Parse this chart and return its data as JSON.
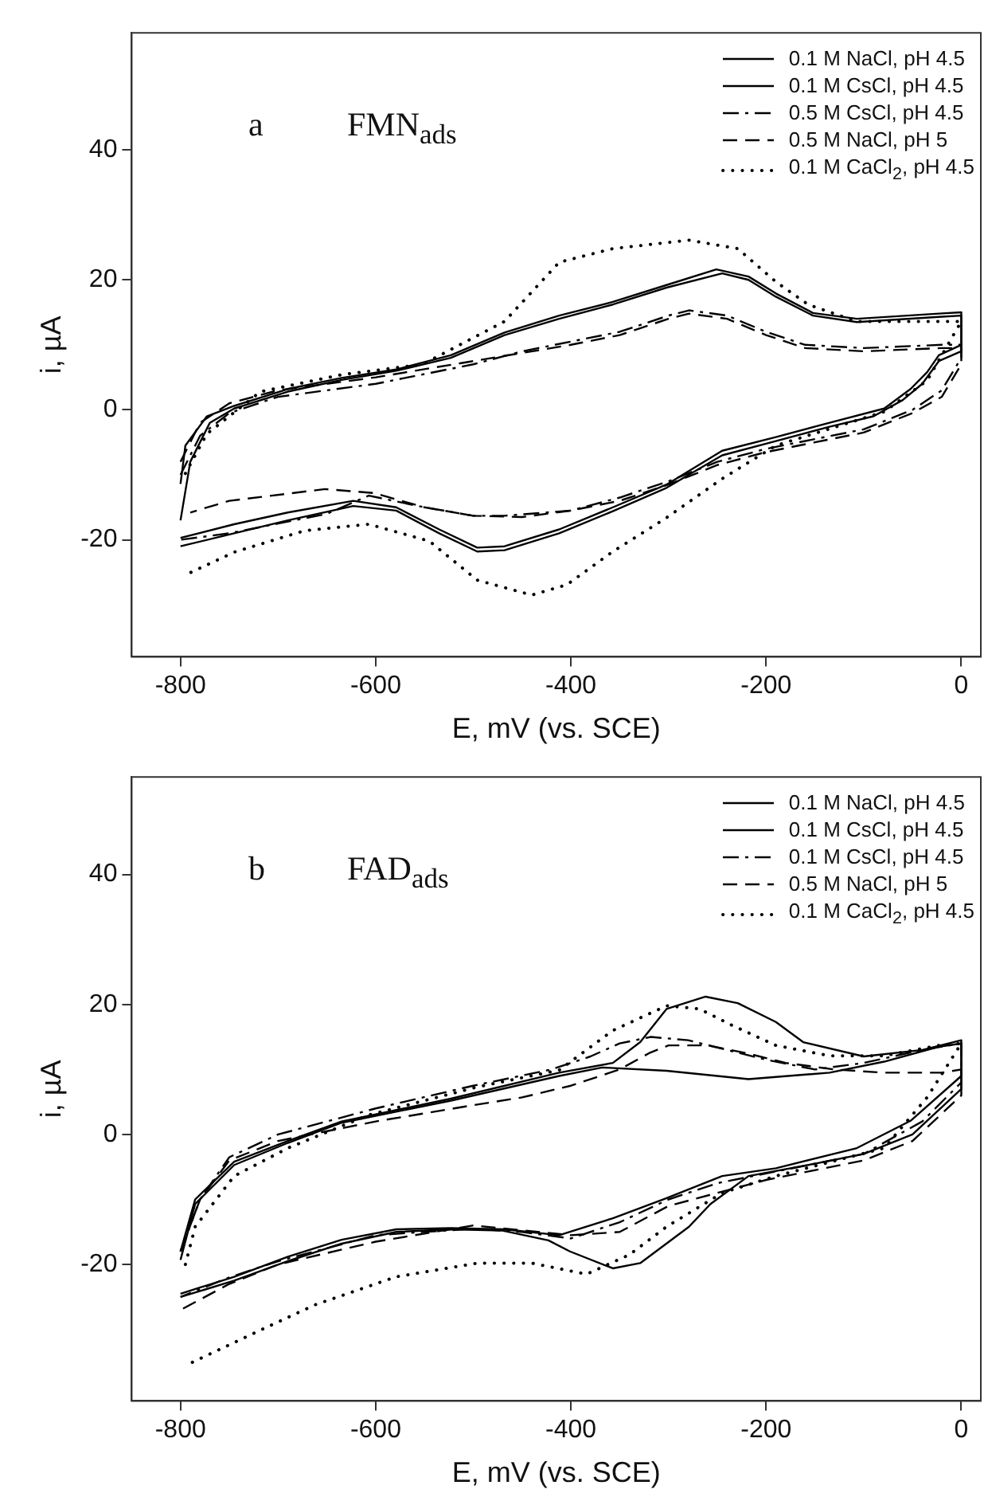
{
  "chart_data": [
    {
      "type": "line",
      "xlabel": "E, mV (vs. SCE)",
      "ylabel": "i, µA",
      "xlim": [
        -850,
        20
      ],
      "ylim": [
        -38,
        58
      ],
      "xticks": [
        -800,
        -600,
        -400,
        -200,
        0
      ],
      "yticks": [
        -20,
        0,
        20,
        40
      ],
      "legend": "top right",
      "annotations": [
        "a",
        "FMN$_{ads}$"
      ],
      "series": [
        {
          "name": "0.1 M NaCl, pH 4.5",
          "color": "#000000",
          "line_style": "solid",
          "x": [
            -800,
            -795,
            -773,
            -745,
            -690,
            -635,
            -579,
            -523,
            -468,
            -412,
            -357,
            -302,
            -251,
            -218,
            -190,
            -152,
            -107,
            -23,
            0,
            0,
            -23,
            -35,
            -52,
            -79,
            -135,
            -190,
            -245,
            -302,
            -357,
            -412,
            -468,
            -496,
            -535,
            -579,
            -623,
            -690,
            -745,
            -800
          ],
          "values": [
            -11.4,
            -5.5,
            -1,
            0.6,
            3.2,
            4.9,
            6.2,
            8.4,
            11.9,
            14.5,
            16.6,
            19.2,
            21.6,
            20.5,
            17.9,
            14.9,
            14,
            14.8,
            15,
            10,
            8.4,
            5.8,
            3.2,
            0.2,
            -2,
            -4.2,
            -6.3,
            -11.5,
            -15,
            -18.4,
            -21,
            -21.2,
            -18.4,
            -15,
            -14,
            -15.8,
            -17.6,
            -19.7
          ]
        },
        {
          "name": "0.1 M CsCl, pH 4.5",
          "color": "#000000",
          "line_style": "solid",
          "x": [
            -800,
            -790,
            -770,
            -745,
            -690,
            -635,
            -579,
            -523,
            -468,
            -412,
            -357,
            -302,
            -245,
            -218,
            -190,
            -152,
            -107,
            -23,
            0,
            0,
            -23,
            -40,
            -60,
            -90,
            -135,
            -190,
            -245,
            -302,
            -357,
            -412,
            -468,
            -496,
            -535,
            -579,
            -623,
            -690,
            -745,
            -800
          ],
          "values": [
            -17,
            -8,
            -2,
            0.2,
            2.8,
            4.6,
            6,
            8,
            11.5,
            14,
            16.2,
            18.8,
            21,
            20,
            17.4,
            14.5,
            13.5,
            14.3,
            14.5,
            9,
            7.5,
            4,
            1.5,
            -1,
            -2.6,
            -4.8,
            -7,
            -12,
            -15.6,
            -19,
            -21.6,
            -21.8,
            -19,
            -15.5,
            -14.8,
            -17,
            -19,
            -21
          ]
        },
        {
          "name": "0.5 M CsCl, pH 4.5",
          "color": "#000000",
          "line_style": "dashdot",
          "x": [
            -800,
            -780,
            -750,
            -700,
            -600,
            -500,
            -450,
            -400,
            -350,
            -300,
            -279,
            -240,
            -200,
            -160,
            -100,
            -20,
            0,
            0,
            -20,
            -50,
            -100,
            -150,
            -200,
            -250,
            -300,
            -350,
            -400,
            -468,
            -500,
            -550,
            -607,
            -650,
            -700,
            -750,
            -800
          ],
          "values": [
            -10,
            -4,
            -0.5,
            2,
            4,
            7,
            9,
            10.5,
            12,
            14.5,
            15.3,
            14.5,
            12,
            10,
            9.5,
            10,
            10,
            8,
            3,
            0,
            -3,
            -4.5,
            -6,
            -8,
            -11,
            -13.5,
            -15.5,
            -16.3,
            -16.3,
            -15,
            -13.2,
            -16,
            -17.5,
            -19,
            -20
          ]
        },
        {
          "name": "0.5 M NaCl, pH 5",
          "color": "#000000",
          "line_style": "dashed",
          "x": [
            -800,
            -780,
            -750,
            -700,
            -600,
            -500,
            -400,
            -350,
            -300,
            -279,
            -240,
            -200,
            -160,
            -100,
            -20,
            0,
            0,
            -20,
            -50,
            -100,
            -150,
            -200,
            -250,
            -300,
            -350,
            -400,
            -450,
            -500,
            -550,
            -602,
            -652,
            -750,
            -790
          ],
          "values": [
            -8,
            -2,
            1,
            3,
            5,
            7.5,
            10,
            11.5,
            14,
            14.8,
            14,
            11.5,
            9.5,
            9,
            9.5,
            9.5,
            7,
            2,
            -0.5,
            -3.5,
            -5,
            -6.5,
            -8.5,
            -11.5,
            -14,
            -15.5,
            -16.5,
            -16.3,
            -15,
            -12.8,
            -12.2,
            -14,
            -15.8
          ]
        },
        {
          "name": "0.1 M CaCl$_{2}$, pH 4.5",
          "color": "#000000",
          "line_style": "dotted",
          "x": [
            -795,
            -773,
            -718,
            -635,
            -552,
            -468,
            -412,
            -357,
            -279,
            -229,
            -190,
            -157,
            -107,
            -23,
            0,
            -35,
            -79,
            -190,
            -245,
            -302,
            -357,
            -404,
            -440,
            -496,
            -545,
            -607,
            -673,
            -745,
            -795
          ],
          "values": [
            -9.8,
            -3.7,
            2.8,
            5.4,
            7,
            13.6,
            22.7,
            24.8,
            26.1,
            24.8,
            19.7,
            16.2,
            13.6,
            13.6,
            13.6,
            4.5,
            -0.3,
            -5.5,
            -10.6,
            -16.6,
            -21.8,
            -26.9,
            -28.5,
            -26.2,
            -20.2,
            -17.6,
            -18.6,
            -21.9,
            -25.4
          ]
        }
      ]
    },
    {
      "type": "line",
      "xlabel": "E, mV (vs. SCE)",
      "ylabel": "i, µA",
      "xlim": [
        -850,
        20
      ],
      "ylim": [
        -41,
        55
      ],
      "xticks": [
        -800,
        -600,
        -400,
        -200,
        0
      ],
      "yticks": [
        -20,
        0,
        20,
        40
      ],
      "legend": "top right",
      "annotations": [
        "b",
        "FAD$_{ads}$"
      ],
      "series": [
        {
          "name": "0.1 M NaCl, pH 4.5",
          "color": "#000000",
          "line_style": "solid",
          "x": [
            -800,
            -785,
            -745,
            -690,
            -635,
            -523,
            -412,
            -368,
            -302,
            -218,
            -135,
            -79,
            -23,
            0,
            0,
            -52,
            -107,
            -190,
            -245,
            -302,
            -357,
            -412,
            -468,
            -523,
            -579,
            -635,
            -690,
            -745,
            -800
          ],
          "values": [
            -19.3,
            -10.7,
            -4.7,
            -1.3,
            1.8,
            5.2,
            9,
            10.3,
            9.8,
            8.5,
            9.5,
            11.2,
            13.5,
            14,
            9,
            2.1,
            -2.1,
            -5.2,
            -6.4,
            -9.8,
            -12.9,
            -15.5,
            -14.6,
            -14.4,
            -14.6,
            -16.2,
            -18.8,
            -21.9,
            -24.5
          ]
        },
        {
          "name": "0.1 M CsCl, pH 4.5",
          "color": "#000000",
          "line_style": "solid",
          "x": [
            -800,
            -785,
            -745,
            -690,
            -635,
            -523,
            -412,
            -357,
            -329,
            -302,
            -262,
            -229,
            -190,
            -162,
            -100,
            -40,
            0,
            0,
            -50,
            -100,
            -150,
            -218,
            -257,
            -279,
            -329,
            -357,
            -401,
            -423,
            -470,
            -523,
            -579,
            -635,
            -690,
            -745,
            -800
          ],
          "values": [
            -18,
            -10,
            -4.2,
            -1,
            2,
            5.5,
            9.5,
            11,
            14.2,
            19.3,
            21.2,
            20.2,
            17.3,
            14.2,
            12,
            13,
            14.5,
            7,
            0,
            -3,
            -4.5,
            -6.4,
            -10.7,
            -14.2,
            -19.8,
            -20.6,
            -18,
            -16.3,
            -14.8,
            -14.6,
            -15,
            -16.8,
            -19.5,
            -22.5,
            -25
          ]
        },
        {
          "name": "0.1 M CsCl, pH 4.5",
          "color": "#000000",
          "line_style": "dashdot",
          "x": [
            -800,
            -780,
            -750,
            -700,
            -600,
            -500,
            -420,
            -380,
            -350,
            -318,
            -280,
            -240,
            -200,
            -150,
            -100,
            -40,
            0,
            0,
            -40,
            -100,
            -200,
            -250,
            -300,
            -350,
            -400,
            -450,
            -500,
            -600,
            -700,
            -750,
            -800
          ],
          "values": [
            -18,
            -10,
            -3.5,
            0,
            4,
            7.5,
            10,
            12,
            14,
            15,
            14.5,
            13,
            11.5,
            10,
            11,
            13,
            14,
            8,
            2,
            -3,
            -6,
            -7.5,
            -10,
            -13.5,
            -16,
            -15,
            -14.5,
            -15.5,
            -19.5,
            -22,
            -25
          ]
        },
        {
          "name": "0.5 M NaCl, pH 5",
          "color": "#000000",
          "line_style": "dashed",
          "x": [
            -800,
            -780,
            -750,
            -700,
            -600,
            -500,
            -450,
            -400,
            -350,
            -320,
            -300,
            -260,
            -220,
            -180,
            -130,
            -80,
            -20,
            0,
            0,
            -50,
            -100,
            -200,
            -300,
            -350,
            -400,
            -500,
            -600,
            -700,
            -750,
            -800
          ],
          "values": [
            -18,
            -10,
            -4,
            -1,
            2,
            4.5,
            5.7,
            7.5,
            10,
            12.5,
            13.7,
            13.7,
            12.5,
            11,
            10,
            9.5,
            9.5,
            10,
            6,
            -1,
            -4,
            -7,
            -11,
            -15,
            -15.5,
            -14,
            -16.5,
            -20,
            -23,
            -27
          ]
        },
        {
          "name": "0.1 M CaCl$_{2}$, pH 4.5",
          "color": "#000000",
          "line_style": "dotted",
          "x": [
            -795,
            -785,
            -745,
            -690,
            -607,
            -496,
            -412,
            -357,
            -302,
            -268,
            -235,
            -190,
            -135,
            -79,
            -23,
            0,
            -35,
            -79,
            -190,
            -245,
            -302,
            -340,
            -384,
            -440,
            -496,
            -579,
            -662,
            -718,
            -790
          ],
          "values": [
            -20,
            -14.2,
            -6.4,
            -2.1,
            3,
            7.3,
            9.9,
            16,
            19.8,
            19.3,
            16.8,
            13.7,
            12.1,
            12.1,
            13.7,
            14,
            5.7,
            -2.1,
            -6.4,
            -9,
            -14.2,
            -18.5,
            -21.5,
            -19.8,
            -19.8,
            -21.9,
            -26.2,
            -30.1,
            -35.2
          ]
        }
      ]
    }
  ]
}
